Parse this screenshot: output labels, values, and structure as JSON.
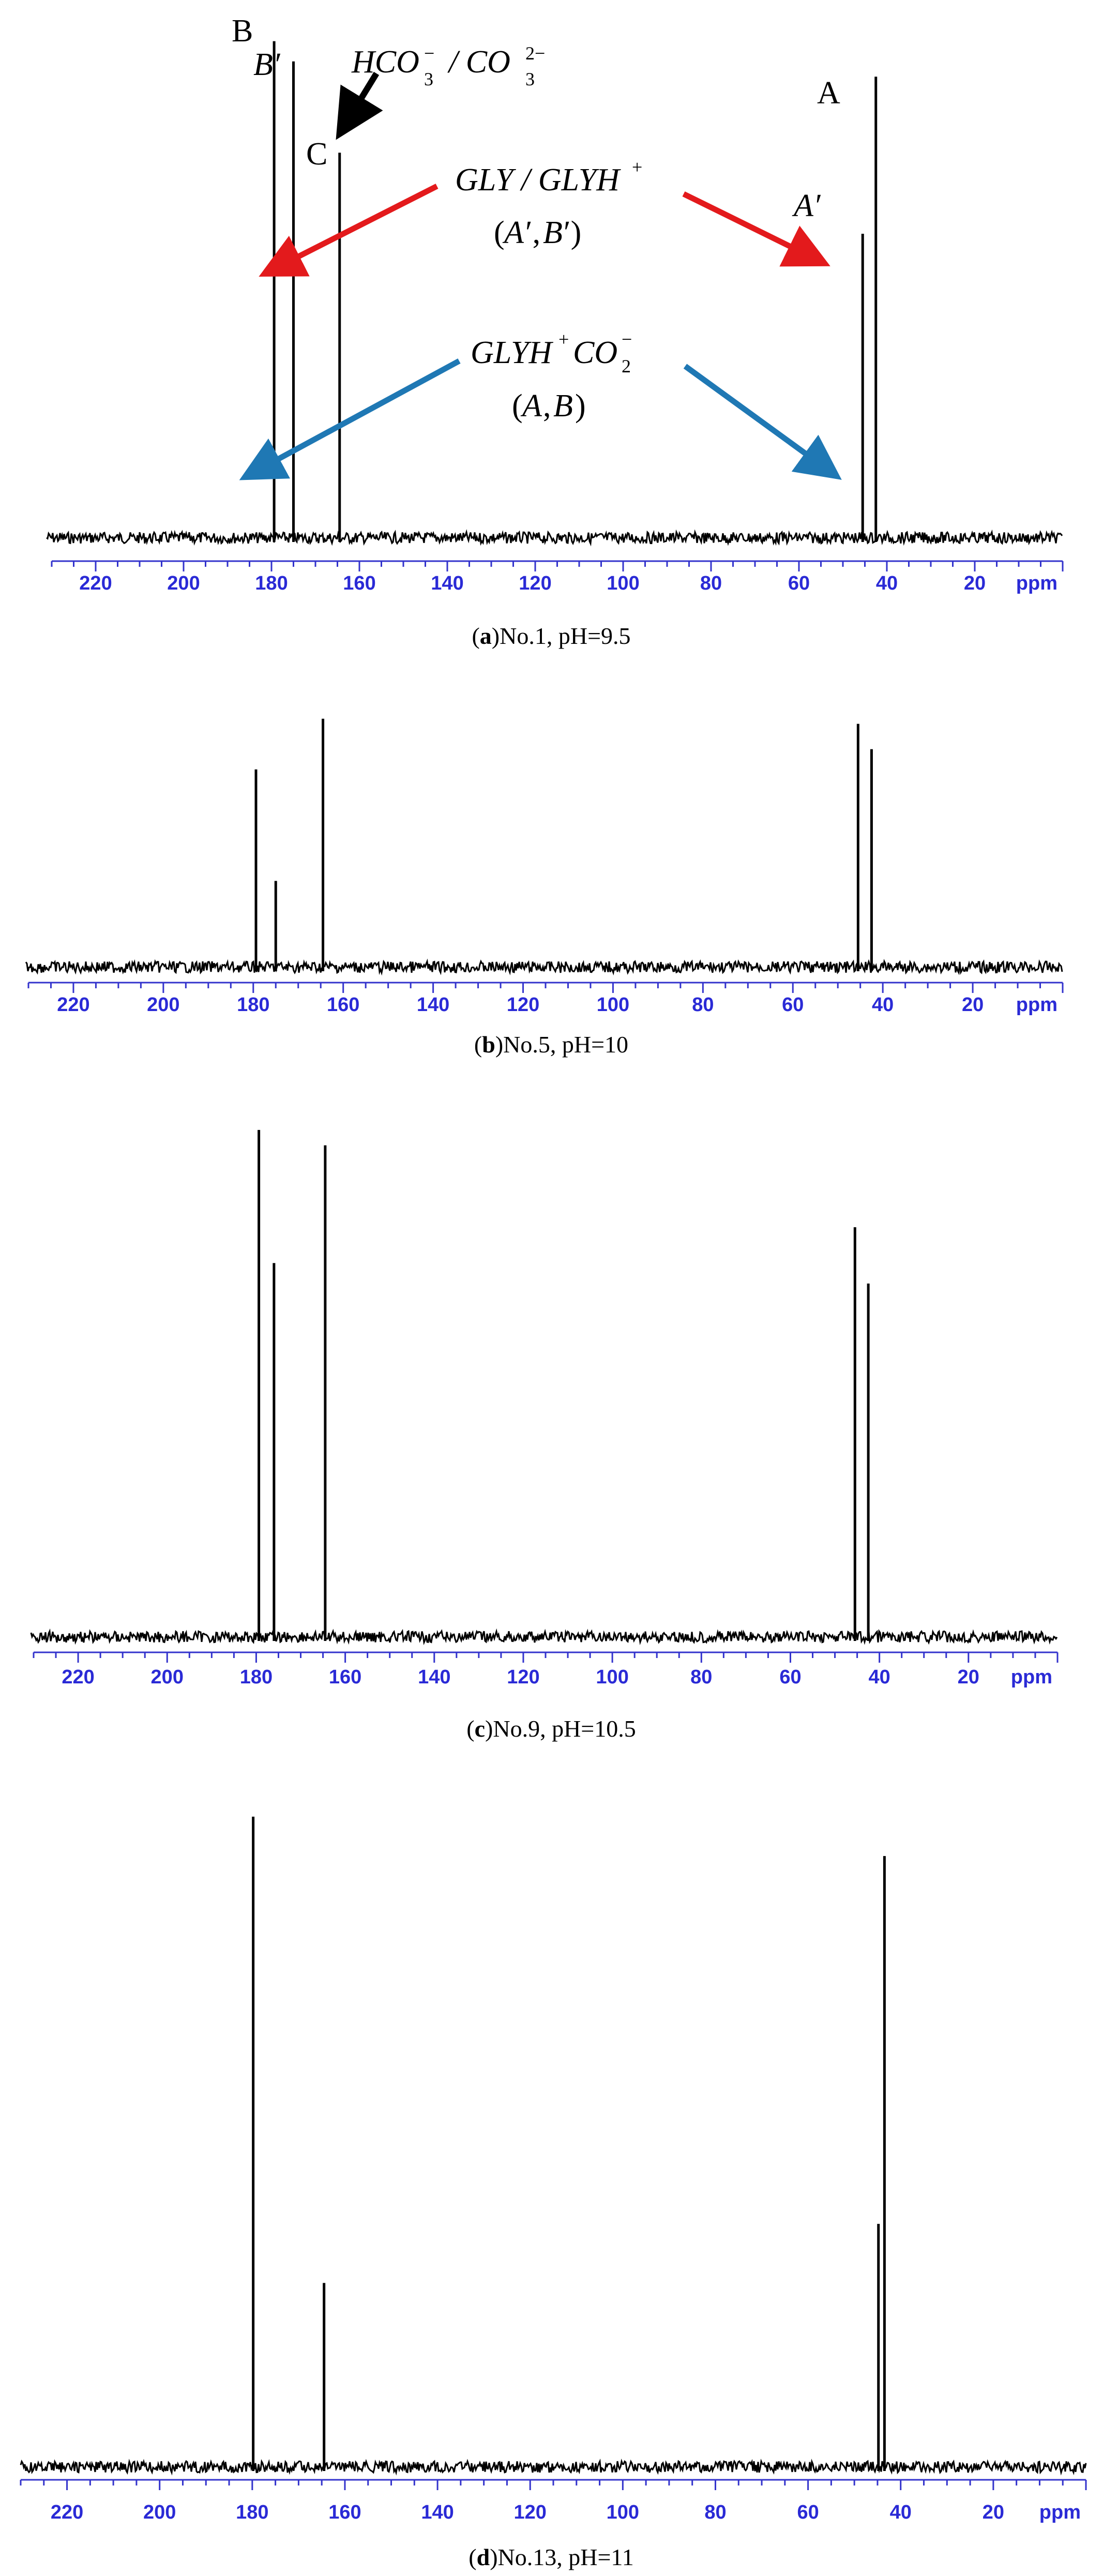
{
  "chart_data": [
    {
      "type": "line",
      "panel": "a",
      "caption": "No.1, pH=9.5",
      "x_unit_label": "ppm",
      "xlim": [
        230,
        0
      ],
      "x_ticks": [
        220,
        200,
        180,
        160,
        140,
        120,
        100,
        80,
        60,
        40,
        20
      ],
      "ylim": [
        0,
        1
      ],
      "peaks": [
        {
          "label": "B",
          "x": 179.4,
          "y": 0.98
        },
        {
          "label": "B′",
          "x": 175.0,
          "y": 0.94
        },
        {
          "label": "C",
          "x": 164.5,
          "y": 0.76
        },
        {
          "label": "A′",
          "x": 45.5,
          "y": 0.6
        },
        {
          "label": "A",
          "x": 42.5,
          "y": 0.91
        }
      ],
      "annotations": [
        {
          "text": "HCO3− / CO3 2−",
          "color": "#000000"
        },
        {
          "text": "GLY / GLYH+",
          "sub_text": "(A′, B′)",
          "color": "#e31a1c"
        },
        {
          "text": "GLYH+CO2−",
          "sub_text": "(A, B)",
          "color": "#1f78b4"
        }
      ]
    },
    {
      "type": "line",
      "panel": "b",
      "caption": "No.5, pH=10",
      "x_unit_label": "ppm",
      "xlim": [
        230,
        0
      ],
      "x_ticks": [
        220,
        200,
        180,
        160,
        140,
        120,
        100,
        80,
        60,
        40,
        20
      ],
      "ylim": [
        0,
        1
      ],
      "peaks": [
        {
          "x": 179.4,
          "y": 0.78
        },
        {
          "x": 175.0,
          "y": 0.34
        },
        {
          "x": 164.5,
          "y": 0.98
        },
        {
          "x": 45.5,
          "y": 0.96
        },
        {
          "x": 42.5,
          "y": 0.86
        }
      ]
    },
    {
      "type": "line",
      "panel": "c",
      "caption": "No.9, pH=10.5",
      "x_unit_label": "ppm",
      "xlim": [
        230,
        0
      ],
      "x_ticks": [
        220,
        200,
        180,
        160,
        140,
        120,
        100,
        80,
        60,
        40,
        20
      ],
      "ylim": [
        0,
        1
      ],
      "peaks": [
        {
          "x": 179.4,
          "y": 0.99
        },
        {
          "x": 176.0,
          "y": 0.73
        },
        {
          "x": 164.5,
          "y": 0.96
        },
        {
          "x": 45.5,
          "y": 0.8
        },
        {
          "x": 42.5,
          "y": 0.69
        }
      ]
    },
    {
      "type": "line",
      "panel": "d",
      "caption": "No.13, pH=11",
      "x_unit_label": "ppm",
      "xlim": [
        230,
        0
      ],
      "x_ticks": [
        220,
        200,
        180,
        160,
        140,
        120,
        100,
        80,
        60,
        40,
        20
      ],
      "ylim": [
        0,
        1
      ],
      "peaks": [
        {
          "x": 179.8,
          "y": 0.99
        },
        {
          "x": 164.5,
          "y": 0.28
        },
        {
          "x": 44.8,
          "y": 0.37
        },
        {
          "x": 43.5,
          "y": 0.93
        }
      ]
    }
  ],
  "colors": {
    "spectrum": "#000000",
    "axis": "#3333cc",
    "tick_label": "#2a2ad6",
    "arrow_black": "#000000",
    "arrow_red": "#e31a1c",
    "arrow_blue": "#1f78b4"
  }
}
